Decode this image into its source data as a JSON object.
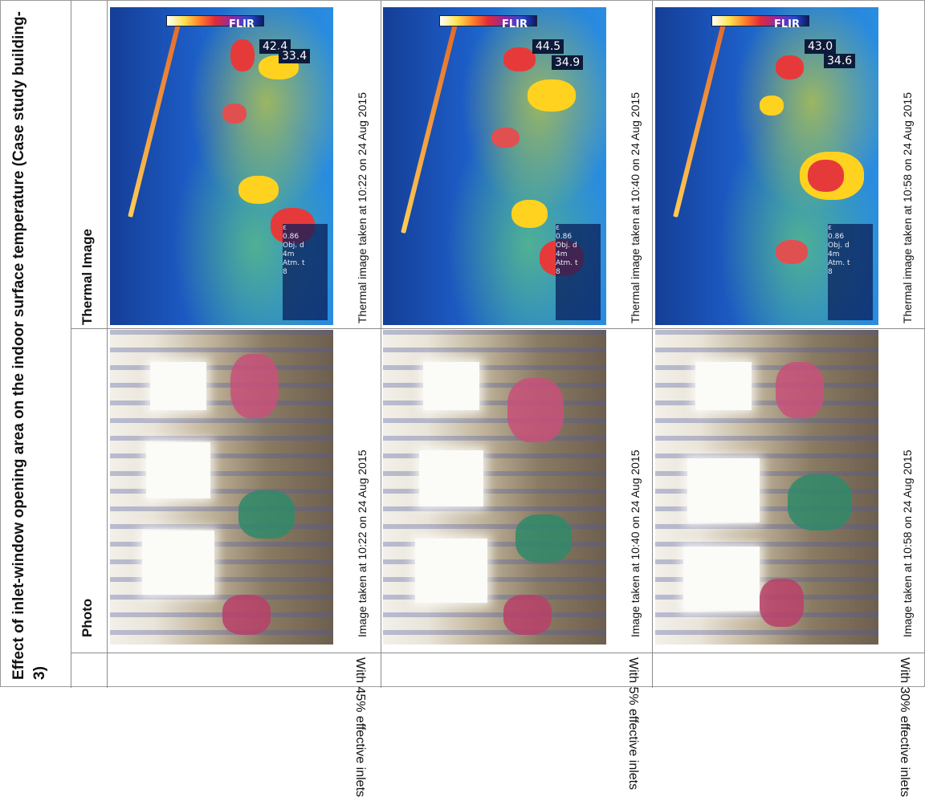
{
  "title": "Effect of inlet-window opening area on the indoor surface temperature (Case study building-3)",
  "headers": {
    "photo": "Photo",
    "thermal": "Thermal Image"
  },
  "flir_logo": "FLIR",
  "params": {
    "emissivity": "0.86",
    "distance": "4m",
    "atm": "8"
  },
  "param_labels": {
    "emissivity": "ε",
    "distance": "Obj. d",
    "atm": "Atm. t"
  },
  "rows": [
    {
      "label": "With 45% effective inlets",
      "photo_caption": "Image taken at 10:22 on 24 Aug 2015",
      "thermal_caption": "Thermal image taken at 10:22 on 24 Aug 2015",
      "temp_max": "42.4",
      "temp_min": "33.4"
    },
    {
      "label": "With 5% effective inlets",
      "photo_caption": "Image taken at 10:40 on 24 Aug 2015",
      "thermal_caption": "Thermal image taken at 10:40 on 24 Aug 2015",
      "temp_max": "44.5",
      "temp_min": "34.9"
    },
    {
      "label": "With 30% effective inlets",
      "photo_caption": "Image taken at 10:58 on 24 Aug 2015",
      "thermal_caption": "Thermal image taken at 10:58 on 24 Aug 2015",
      "temp_max": "43.0",
      "temp_min": "34.6"
    }
  ],
  "colors": {
    "thermal_cold": "#153e96",
    "thermal_hot": "#e02a3a",
    "grid_line": "#8c8c8c"
  }
}
